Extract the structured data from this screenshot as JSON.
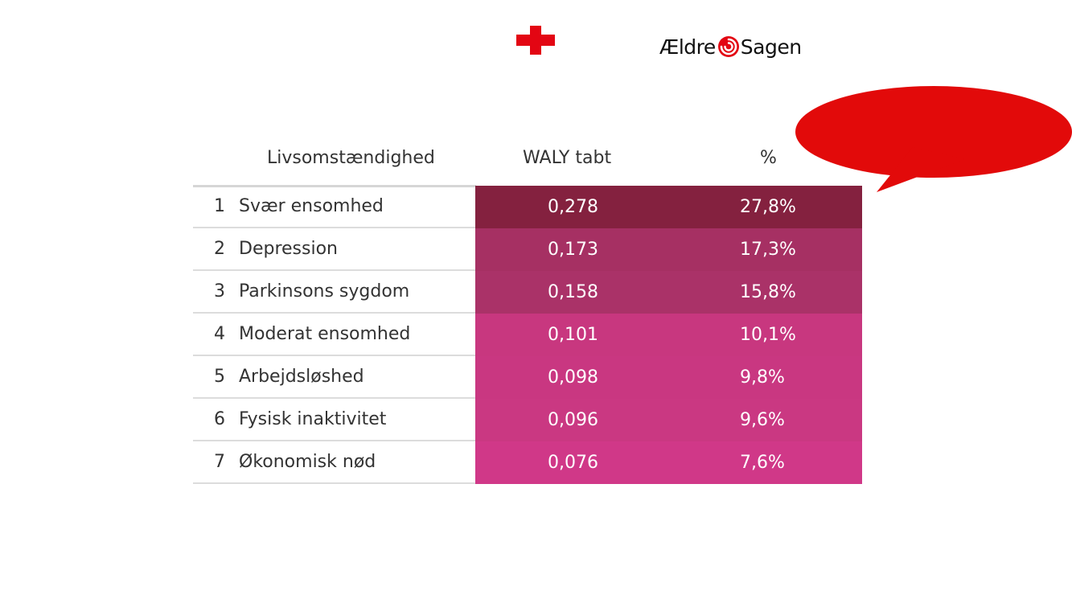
{
  "logos": {
    "red_cross": "red-cross-logo",
    "aeldre_sagen": {
      "part1": "Ældre",
      "part2": "Sagen",
      "color": "#e30613"
    }
  },
  "bubble": {
    "color": "#e20a0a",
    "text": ""
  },
  "table": {
    "headers": {
      "life": "Livsomstændighed",
      "waly": "WALY tabt",
      "pct": "%"
    },
    "rows": [
      {
        "rank": "1",
        "name": "Svær ensomhed",
        "waly": "0,278",
        "pct": "27,8%",
        "color": "#84213f"
      },
      {
        "rank": "2",
        "name": "Depression",
        "waly": "0,173",
        "pct": "17,3%",
        "color": "#a63063"
      },
      {
        "rank": "3",
        "name": "Parkinsons sygdom",
        "waly": "0,158",
        "pct": "15,8%",
        "color": "#aa3268"
      },
      {
        "rank": "4",
        "name": "Moderat ensomhed",
        "waly": "0,101",
        "pct": "10,1%",
        "color": "#c8377f"
      },
      {
        "rank": "5",
        "name": "Arbejdsløshed",
        "waly": "0,098",
        "pct": "9,8%",
        "color": "#c93781"
      },
      {
        "rank": "6",
        "name": "Fysisk inaktivitet",
        "waly": "0,096",
        "pct": "9,6%",
        "color": "#ca3882"
      },
      {
        "rank": "7",
        "name": "Økonomisk nød",
        "waly": "0,076",
        "pct": "7,6%",
        "color": "#d03888"
      }
    ]
  }
}
